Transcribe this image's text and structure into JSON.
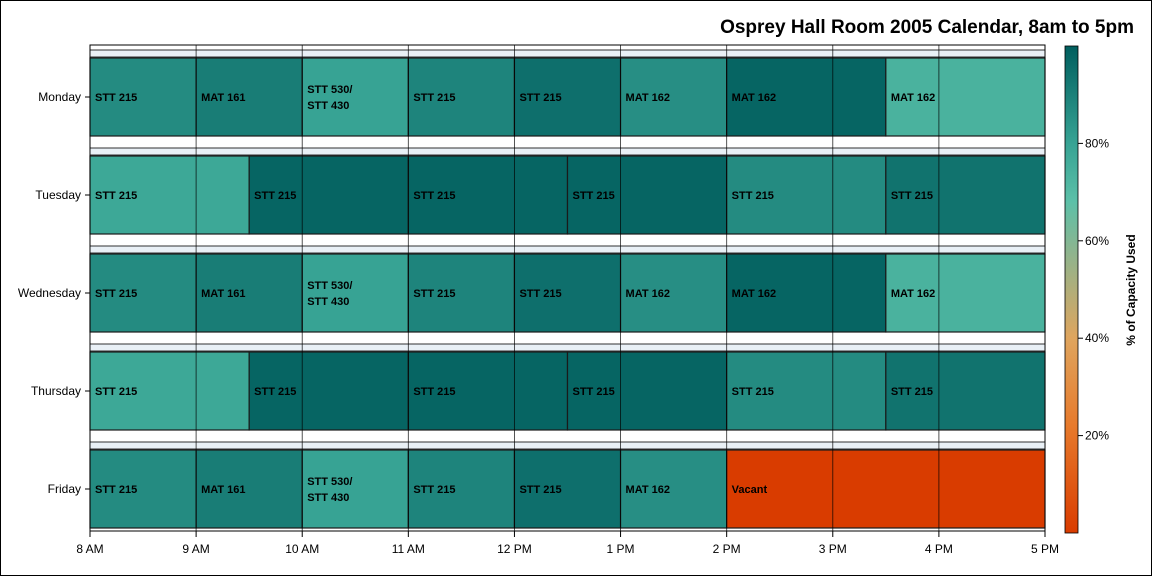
{
  "chart_data": {
    "type": "heatmap",
    "subtype": "calendar-timeline",
    "title": "Osprey Hall Room 2005 Calendar, 8am to 5pm",
    "time_ticks": [
      {
        "hour": 8,
        "label": "8 AM"
      },
      {
        "hour": 9,
        "label": "9 AM"
      },
      {
        "hour": 10,
        "label": "10 AM"
      },
      {
        "hour": 11,
        "label": "11 AM"
      },
      {
        "hour": 12,
        "label": "12 PM"
      },
      {
        "hour": 13,
        "label": "1 PM"
      },
      {
        "hour": 14,
        "label": "2 PM"
      },
      {
        "hour": 15,
        "label": "3 PM"
      },
      {
        "hour": 16,
        "label": "4 PM"
      },
      {
        "hour": 17,
        "label": "5 PM"
      }
    ],
    "time_range": [
      8,
      17
    ],
    "days": [
      {
        "name": "Monday",
        "blocks": [
          {
            "start": 8,
            "end": 9,
            "label": [
              "STT 215"
            ],
            "capacity": 87
          },
          {
            "start": 9,
            "end": 10,
            "label": [
              "MAT 161"
            ],
            "capacity": 91
          },
          {
            "start": 10,
            "end": 11,
            "label": [
              "STT 530/",
              "STT 430"
            ],
            "capacity": 80
          },
          {
            "start": 11,
            "end": 12,
            "label": [
              "STT 215"
            ],
            "capacity": 89
          },
          {
            "start": 12,
            "end": 13,
            "label": [
              "STT 215"
            ],
            "capacity": 95
          },
          {
            "start": 13,
            "end": 14,
            "label": [
              "MAT 162"
            ],
            "capacity": 86
          },
          {
            "start": 14,
            "end": 15.5,
            "label": [
              "MAT 162"
            ],
            "capacity": 98
          },
          {
            "start": 15.5,
            "end": 17,
            "label": [
              "MAT 162"
            ],
            "capacity": 74
          }
        ]
      },
      {
        "name": "Tuesday",
        "blocks": [
          {
            "start": 8,
            "end": 9.5,
            "label": [
              "STT 215"
            ],
            "capacity": 78
          },
          {
            "start": 9.5,
            "end": 11,
            "label": [
              "STT 215"
            ],
            "capacity": 98
          },
          {
            "start": 11,
            "end": 12.5,
            "label": [
              "STT 215"
            ],
            "capacity": 98
          },
          {
            "start": 12.5,
            "end": 14,
            "label": [
              "STT 215"
            ],
            "capacity": 98
          },
          {
            "start": 14,
            "end": 15.5,
            "label": [
              "STT 215"
            ],
            "capacity": 87
          },
          {
            "start": 15.5,
            "end": 17,
            "label": [
              "STT 215"
            ],
            "capacity": 94
          }
        ]
      },
      {
        "name": "Wednesday",
        "blocks": [
          {
            "start": 8,
            "end": 9,
            "label": [
              "STT 215"
            ],
            "capacity": 87
          },
          {
            "start": 9,
            "end": 10,
            "label": [
              "MAT 161"
            ],
            "capacity": 91
          },
          {
            "start": 10,
            "end": 11,
            "label": [
              "STT 530/",
              "STT 430"
            ],
            "capacity": 80
          },
          {
            "start": 11,
            "end": 12,
            "label": [
              "STT 215"
            ],
            "capacity": 89
          },
          {
            "start": 12,
            "end": 13,
            "label": [
              "STT 215"
            ],
            "capacity": 95
          },
          {
            "start": 13,
            "end": 14,
            "label": [
              "MAT 162"
            ],
            "capacity": 86
          },
          {
            "start": 14,
            "end": 15.5,
            "label": [
              "MAT 162"
            ],
            "capacity": 98
          },
          {
            "start": 15.5,
            "end": 17,
            "label": [
              "MAT 162"
            ],
            "capacity": 74
          }
        ]
      },
      {
        "name": "Thursday",
        "blocks": [
          {
            "start": 8,
            "end": 9.5,
            "label": [
              "STT 215"
            ],
            "capacity": 78
          },
          {
            "start": 9.5,
            "end": 11,
            "label": [
              "STT 215"
            ],
            "capacity": 98
          },
          {
            "start": 11,
            "end": 12.5,
            "label": [
              "STT 215"
            ],
            "capacity": 98
          },
          {
            "start": 12.5,
            "end": 14,
            "label": [
              "STT 215"
            ],
            "capacity": 98
          },
          {
            "start": 14,
            "end": 15.5,
            "label": [
              "STT 215"
            ],
            "capacity": 87
          },
          {
            "start": 15.5,
            "end": 17,
            "label": [
              "STT 215"
            ],
            "capacity": 94
          }
        ]
      },
      {
        "name": "Friday",
        "blocks": [
          {
            "start": 8,
            "end": 9,
            "label": [
              "STT 215"
            ],
            "capacity": 87
          },
          {
            "start": 9,
            "end": 10,
            "label": [
              "MAT 161"
            ],
            "capacity": 91
          },
          {
            "start": 10,
            "end": 11,
            "label": [
              "STT 530/",
              "STT 430"
            ],
            "capacity": 80
          },
          {
            "start": 11,
            "end": 12,
            "label": [
              "STT 215"
            ],
            "capacity": 89
          },
          {
            "start": 12,
            "end": 13,
            "label": [
              "STT 215"
            ],
            "capacity": 95
          },
          {
            "start": 13,
            "end": 14,
            "label": [
              "MAT 162"
            ],
            "capacity": 86
          },
          {
            "start": 14,
            "end": 17,
            "label": [
              "Vacant"
            ],
            "capacity": 0
          }
        ]
      }
    ],
    "legend": {
      "title": "% of Capacity Used",
      "placement": "right",
      "range": [
        0,
        100
      ],
      "ticks": [
        {
          "value": 20,
          "label": "20%"
        },
        {
          "value": 40,
          "label": "40%"
        },
        {
          "value": 60,
          "label": "60%"
        },
        {
          "value": 80,
          "label": "80%"
        }
      ],
      "color_stops": [
        {
          "value": 0,
          "color": "#d93c00"
        },
        {
          "value": 22,
          "color": "#e77a2c"
        },
        {
          "value": 40,
          "color": "#dfa55e"
        },
        {
          "value": 58,
          "color": "#8cb58f"
        },
        {
          "value": 68,
          "color": "#5cc0a8"
        },
        {
          "value": 80,
          "color": "#37a394"
        },
        {
          "value": 100,
          "color": "#005e5e"
        }
      ]
    },
    "colors": {
      "band_background": "#e9f0f6",
      "axis": "#000000",
      "grid": "#000000"
    }
  }
}
